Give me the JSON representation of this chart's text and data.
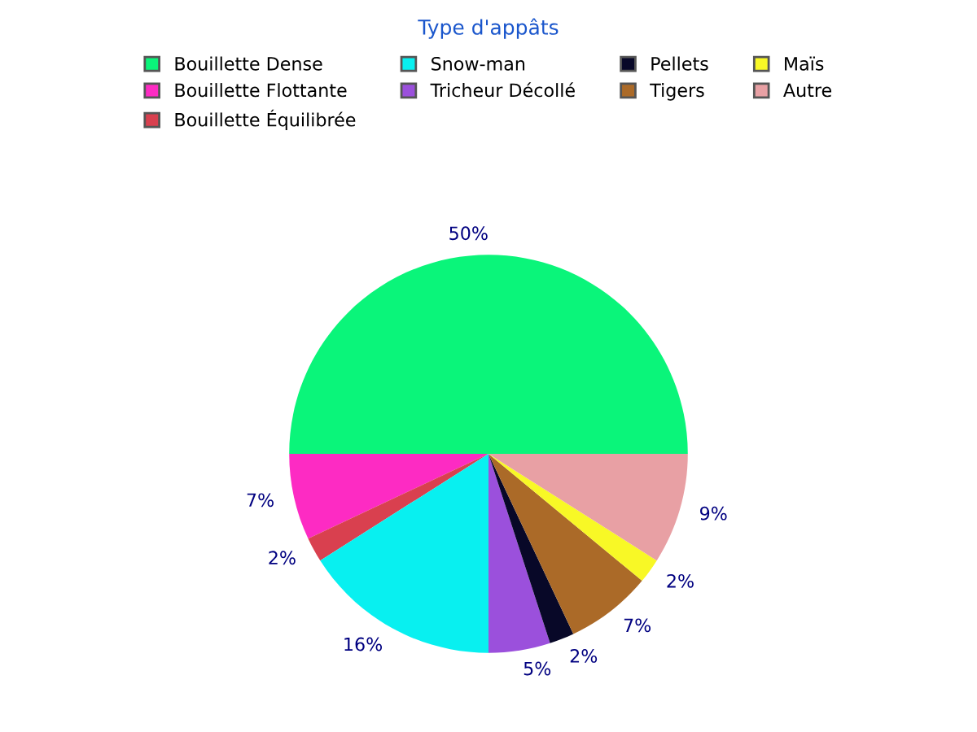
{
  "chart_data": {
    "type": "pie",
    "title": "Type d'appâts",
    "categories": [
      "Bouillette Dense",
      "Bouillette Flottante",
      "Bouillette Équilibrée",
      "Snow-man",
      "Tricheur Décollé",
      "Pellets",
      "Tigers",
      "Maïs",
      "Autre"
    ],
    "values": [
      50,
      7,
      2,
      16,
      5,
      2,
      7,
      2,
      9
    ],
    "value_labels": [
      "50%",
      "7%",
      "2%",
      "16%",
      "5%",
      "2%",
      "7%",
      "2%",
      "9%"
    ],
    "colors": [
      "#0af57a",
      "#fd2bc3",
      "#d9404f",
      "#08f0f0",
      "#9b50dc",
      "#080828",
      "#ab6a28",
      "#f8f826",
      "#e8a0a4"
    ],
    "legend": "top"
  }
}
